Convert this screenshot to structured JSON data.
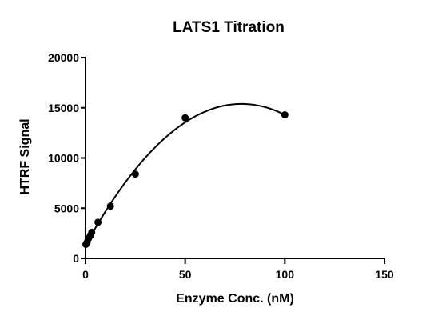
{
  "chart_data": {
    "type": "scatter",
    "title": "LATS1 Titration",
    "xlabel": "Enzyme Conc. (nM)",
    "ylabel": "HTRF Signal",
    "xlim": [
      0,
      150
    ],
    "ylim": [
      0,
      20000
    ],
    "xticks": [
      0,
      50,
      100,
      150
    ],
    "yticks": [
      0,
      5000,
      10000,
      15000,
      20000
    ],
    "xtick_labels": [
      "0",
      "50",
      "100",
      "150"
    ],
    "ytick_labels": [
      "0",
      "5000",
      "10000",
      "15000",
      "20000"
    ],
    "grid": false,
    "legend": "none",
    "series": [
      {
        "points": [
          {
            "x": 0.2,
            "y": 1400
          },
          {
            "x": 0.78,
            "y": 1600
          },
          {
            "x": 1.56,
            "y": 2000
          },
          {
            "x": 2.5,
            "y": 2300
          },
          {
            "x": 3.13,
            "y": 2600
          },
          {
            "x": 6.25,
            "y": 3600
          },
          {
            "x": 12.5,
            "y": 5200
          },
          {
            "x": 25,
            "y": 8400
          },
          {
            "x": 50,
            "y": 14000
          },
          {
            "x": 100,
            "y": 14300
          }
        ],
        "fit": {
          "type": "quadratic",
          "x_range": [
            0,
            100
          ],
          "coefficients": [
            1300,
            360,
            -2.3
          ]
        },
        "color": "#000000"
      }
    ]
  }
}
